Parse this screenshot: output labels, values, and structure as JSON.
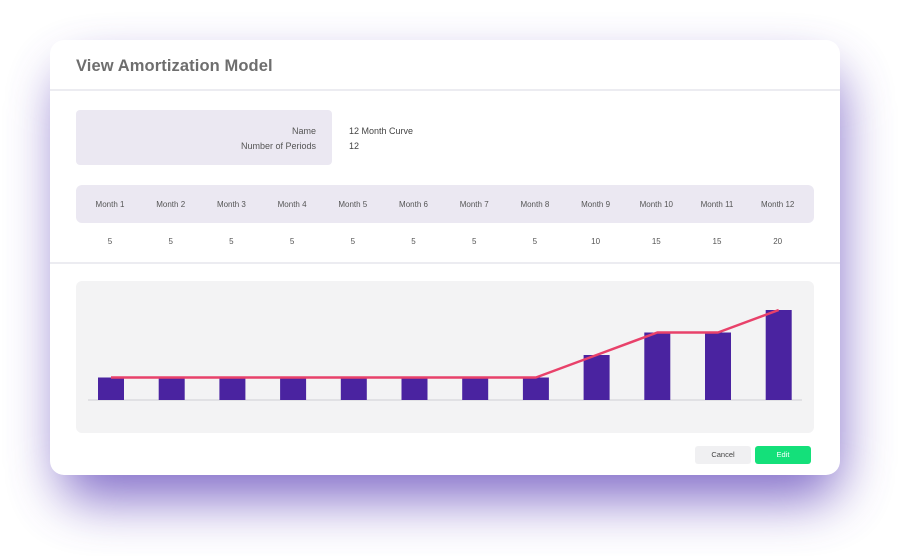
{
  "modal": {
    "title": "View Amortization Model",
    "info": {
      "name_label": "Name",
      "name_value": "12 Month Curve",
      "periods_label": "Number of Periods",
      "periods_value": "12"
    },
    "buttons": {
      "cancel": "Cancel",
      "edit": "Edit"
    }
  },
  "table": {
    "months": [
      "Month 1",
      "Month 2",
      "Month 3",
      "Month 4",
      "Month 5",
      "Month 6",
      "Month 7",
      "Month 8",
      "Month 9",
      "Month 10",
      "Month 11",
      "Month 12"
    ],
    "values": [
      "5",
      "5",
      "5",
      "5",
      "5",
      "5",
      "5",
      "5",
      "10",
      "15",
      "15",
      "20"
    ]
  },
  "colors": {
    "bar": "#4a23a0",
    "line": "#e8416a",
    "accent_button": "#14e07a"
  },
  "chart_data": {
    "type": "bar",
    "categories": [
      "Month 1",
      "Month 2",
      "Month 3",
      "Month 4",
      "Month 5",
      "Month 6",
      "Month 7",
      "Month 8",
      "Month 9",
      "Month 10",
      "Month 11",
      "Month 12"
    ],
    "series": [
      {
        "values": [
          5,
          5,
          5,
          5,
          5,
          5,
          5,
          5,
          10,
          15,
          15,
          20
        ]
      },
      {
        "type": "line",
        "values": [
          5,
          5,
          5,
          5,
          5,
          5,
          5,
          5,
          10,
          15,
          15,
          20
        ]
      }
    ],
    "ylim": [
      0,
      20
    ],
    "grid": false,
    "legend": "none"
  }
}
